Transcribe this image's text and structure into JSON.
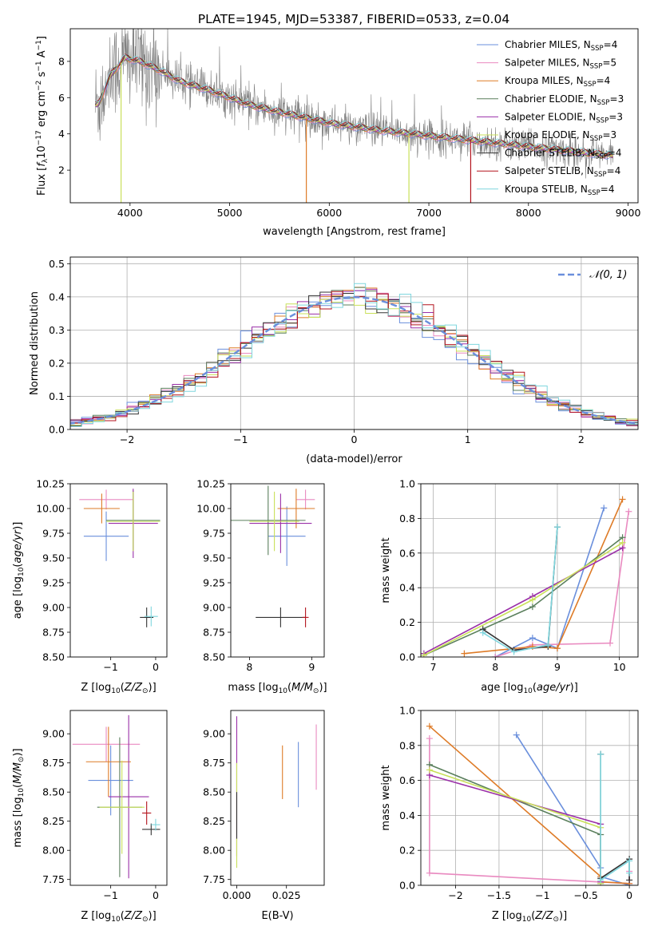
{
  "figure_title": "PLATE=1945, MJD=53387, FIBERID=0533, z=0.04",
  "colors": {
    "chabrier_miles": "#6a8fdc",
    "salpeter_miles": "#e98ac0",
    "kroupa_miles": "#de7b27",
    "chabrier_elodie": "#5a7f5c",
    "salpeter_elodie": "#9a2fa8",
    "kroupa_elodie": "#c9e05a",
    "chabrier_stelib": "#333333",
    "salpeter_stelib": "#b3121c",
    "kroupa_stelib": "#7fd6de",
    "data": "#808080",
    "normal": "#6a8fdc"
  },
  "legend_entries": [
    {
      "label": "Chabrier MILES, N",
      "sub": "SSP",
      "val": "=4",
      "color": "chabrier_miles"
    },
    {
      "label": "Salpeter MILES, N",
      "sub": "SSP",
      "val": "=5",
      "color": "salpeter_miles"
    },
    {
      "label": "Kroupa MILES, N",
      "sub": "SSP",
      "val": "=4",
      "color": "kroupa_miles"
    },
    {
      "label": "Chabrier ELODIE, N",
      "sub": "SSP",
      "val": "=3",
      "color": "chabrier_elodie"
    },
    {
      "label": "Salpeter ELODIE, N",
      "sub": "SSP",
      "val": "=3",
      "color": "salpeter_elodie"
    },
    {
      "label": "Kroupa ELODIE, N",
      "sub": "SSP",
      "val": "=3",
      "color": "kroupa_elodie"
    },
    {
      "label": "Chabrier STELIB, N",
      "sub": "SSP",
      "val": "=4",
      "color": "chabrier_stelib"
    },
    {
      "label": "Salpeter STELIB, N",
      "sub": "SSP",
      "val": "=4",
      "color": "salpeter_stelib"
    },
    {
      "label": "Kroupa STELIB, N",
      "sub": "SSP",
      "val": "=4",
      "color": "kroupa_stelib"
    }
  ],
  "chart_data": [
    {
      "id": "spectrum",
      "type": "line",
      "title": "PLATE=1945, MJD=53387, FIBERID=0533, z=0.04",
      "xlabel": "wavelength [Angstrom, rest frame]",
      "ylabel": "Flux [fλ10⁻¹⁷ erg cm⁻² s⁻¹ A⁻¹]",
      "xlim": [
        3400,
        9100
      ],
      "ylim": [
        0.2,
        9.8
      ],
      "xticks": [
        4000,
        5000,
        6000,
        7000,
        8000,
        9000
      ],
      "yticks": [
        2,
        4,
        6,
        8
      ],
      "legend": "upper right",
      "data_xrange": [
        3650,
        8850
      ],
      "model_anchors": [
        {
          "x": 3680,
          "y": 5.6
        },
        {
          "x": 3800,
          "y": 7.2
        },
        {
          "x": 3950,
          "y": 8.2
        },
        {
          "x": 4100,
          "y": 8.0
        },
        {
          "x": 4300,
          "y": 7.5
        },
        {
          "x": 4500,
          "y": 6.9
        },
        {
          "x": 4800,
          "y": 6.4
        },
        {
          "x": 5000,
          "y": 6.0
        },
        {
          "x": 5200,
          "y": 5.6
        },
        {
          "x": 5500,
          "y": 5.2
        },
        {
          "x": 6000,
          "y": 4.6
        },
        {
          "x": 6500,
          "y": 4.2
        },
        {
          "x": 7000,
          "y": 3.9
        },
        {
          "x": 7500,
          "y": 3.6
        },
        {
          "x": 8000,
          "y": 3.3
        },
        {
          "x": 8500,
          "y": 3.0
        },
        {
          "x": 8850,
          "y": 2.8
        }
      ],
      "model_dips": [
        {
          "x": 3910,
          "y": 0.2,
          "color": "kroupa_elodie"
        },
        {
          "x": 5770,
          "y": 0.2,
          "color": "kroupa_miles"
        },
        {
          "x": 6800,
          "y": 0.2,
          "color": "kroupa_elodie"
        },
        {
          "x": 7420,
          "y": 0.2,
          "color": "salpeter_stelib"
        }
      ]
    },
    {
      "id": "residuals",
      "type": "histogram",
      "xlabel": "(data-model)/error",
      "ylabel": "Normed distribution",
      "xlim": [
        -2.5,
        2.5
      ],
      "ylim": [
        0,
        0.52
      ],
      "xticks": [
        -2,
        -1,
        0,
        1,
        2
      ],
      "yticks": [
        0,
        0.1,
        0.2,
        0.3,
        0.4,
        0.5
      ],
      "legend": "upper right",
      "normal_label": "𝒩(0, 1)",
      "bin_width": 0.1,
      "grid": true
    },
    {
      "id": "age_vs_Z",
      "type": "errorbar",
      "xlabel": "Z [log₁₀(Z/Z⊙)]",
      "ylabel": "age  [log₁₀(age/yr)]",
      "xlim": [
        -1.9,
        0.25
      ],
      "ylim": [
        8.5,
        10.25
      ],
      "xticks": [
        -1,
        0
      ],
      "yticks": [
        8.5,
        8.75,
        9.0,
        9.25,
        9.5,
        9.75,
        10.0,
        10.25
      ],
      "points": [
        {
          "x": -1.1,
          "xerr": 0.5,
          "y": 9.72,
          "yerr": 0.25,
          "color": "chabrier_miles"
        },
        {
          "x": -1.1,
          "xerr": 0.6,
          "y": 10.09,
          "yerr": 0.1,
          "color": "salpeter_miles"
        },
        {
          "x": -1.2,
          "xerr": 0.4,
          "y": 10.0,
          "yerr": 0.15,
          "color": "kroupa_miles"
        },
        {
          "x": -0.5,
          "xerr": 0.6,
          "y": 9.88,
          "yerr": 0.3,
          "color": "chabrier_elodie"
        },
        {
          "x": -0.5,
          "xerr": 0.55,
          "y": 9.85,
          "yerr": 0.35,
          "color": "salpeter_elodie"
        },
        {
          "x": -0.5,
          "xerr": 0.6,
          "y": 9.87,
          "yerr": 0.3,
          "color": "kroupa_elodie"
        },
        {
          "x": -0.2,
          "xerr": 0.15,
          "y": 8.9,
          "yerr": 0.1,
          "color": "chabrier_stelib"
        },
        {
          "x": -0.1,
          "xerr": 0.15,
          "y": 8.91,
          "yerr": 0.1,
          "color": "kroupa_stelib"
        }
      ]
    },
    {
      "id": "age_vs_mass",
      "type": "errorbar",
      "xlabel": "mass [log₁₀(M/M⊙)]",
      "ylabel": "",
      "xlim": [
        7.7,
        9.2
      ],
      "ylim": [
        8.5,
        10.25
      ],
      "xticks": [
        8,
        9
      ],
      "yticks": [
        8.5,
        8.75,
        9.0,
        9.25,
        9.5,
        9.75,
        10.0,
        10.25
      ],
      "points": [
        {
          "x": 8.6,
          "xerr": 0.3,
          "y": 9.72,
          "yerr": 0.3,
          "color": "chabrier_miles"
        },
        {
          "x": 8.9,
          "xerr": 0.15,
          "y": 10.09,
          "yerr": 0.1,
          "color": "salpeter_miles"
        },
        {
          "x": 8.75,
          "xerr": 0.3,
          "y": 10.0,
          "yerr": 0.2,
          "color": "kroupa_miles"
        },
        {
          "x": 8.3,
          "xerr": 0.6,
          "y": 9.88,
          "yerr": 0.35,
          "color": "chabrier_elodie"
        },
        {
          "x": 8.5,
          "xerr": 0.5,
          "y": 9.85,
          "yerr": 0.3,
          "color": "salpeter_elodie"
        },
        {
          "x": 8.4,
          "xerr": 0.4,
          "y": 9.87,
          "yerr": 0.3,
          "color": "kroupa_elodie"
        },
        {
          "x": 8.5,
          "xerr": 0.4,
          "y": 8.9,
          "yerr": 0.1,
          "color": "chabrier_stelib"
        },
        {
          "x": 8.9,
          "xerr": 0.05,
          "y": 8.9,
          "yerr": 0.1,
          "color": "salpeter_stelib"
        }
      ]
    },
    {
      "id": "mass_weight_vs_age",
      "type": "line",
      "xlabel": "age  [log₁₀(age/yr)]",
      "ylabel": "mass weight",
      "xlim": [
        6.8,
        10.3
      ],
      "ylim": [
        0,
        1.0
      ],
      "xticks": [
        7,
        8,
        9,
        10
      ],
      "yticks": [
        0.0,
        0.2,
        0.4,
        0.6,
        0.8,
        1.0
      ],
      "grid": true,
      "series": [
        {
          "color": "chabrier_miles",
          "x": [
            8.0,
            8.6,
            9.0,
            9.75
          ],
          "y": [
            0.0,
            0.11,
            0.05,
            0.86
          ]
        },
        {
          "color": "salpeter_miles",
          "x": [
            8.0,
            8.6,
            9.85,
            10.15
          ],
          "y": [
            0.0,
            0.07,
            0.08,
            0.84
          ]
        },
        {
          "color": "kroupa_miles",
          "x": [
            7.5,
            8.6,
            9.0,
            10.05
          ],
          "y": [
            0.02,
            0.06,
            0.05,
            0.91
          ]
        },
        {
          "color": "chabrier_elodie",
          "x": [
            6.85,
            8.6,
            10.05
          ],
          "y": [
            0.01,
            0.29,
            0.69
          ]
        },
        {
          "color": "salpeter_elodie",
          "x": [
            6.85,
            8.6,
            10.05
          ],
          "y": [
            0.02,
            0.35,
            0.63
          ]
        },
        {
          "color": "kroupa_elodie",
          "x": [
            6.85,
            8.6,
            10.05
          ],
          "y": [
            0.01,
            0.33,
            0.66
          ]
        },
        {
          "color": "chabrier_stelib",
          "x": [
            7.8,
            8.3,
            8.85,
            9.0
          ],
          "y": [
            0.16,
            0.04,
            0.06,
            0.75
          ]
        },
        {
          "color": "kroupa_stelib",
          "x": [
            7.8,
            8.3,
            8.85,
            9.0
          ],
          "y": [
            0.14,
            0.03,
            0.07,
            0.75
          ]
        }
      ]
    },
    {
      "id": "mass_vs_Z",
      "type": "errorbar",
      "xlabel": "Z [log₁₀(Z/Z⊙)]",
      "ylabel": "mass [log₁₀(M/M⊙)]",
      "xlim": [
        -1.9,
        0.25
      ],
      "ylim": [
        7.7,
        9.2
      ],
      "xticks": [
        -1,
        0
      ],
      "yticks": [
        7.75,
        8.0,
        8.25,
        8.5,
        8.75,
        9.0
      ],
      "points": [
        {
          "x": -1.0,
          "xerr": 0.5,
          "y": 8.6,
          "yerr": 0.3,
          "color": "chabrier_miles"
        },
        {
          "x": -1.1,
          "xerr": 0.75,
          "y": 8.91,
          "yerr": 0.15,
          "color": "salpeter_miles"
        },
        {
          "x": -1.05,
          "xerr": 0.5,
          "y": 8.76,
          "yerr": 0.3,
          "color": "kroupa_miles"
        },
        {
          "x": -0.8,
          "xerr": 0.5,
          "y": 8.37,
          "yerr": 0.6,
          "color": "chabrier_elodie"
        },
        {
          "x": -0.6,
          "xerr": 0.45,
          "y": 8.46,
          "yerr": 0.7,
          "color": "salpeter_elodie"
        },
        {
          "x": -0.75,
          "xerr": 0.5,
          "y": 8.37,
          "yerr": 0.4,
          "color": "kroupa_elodie"
        },
        {
          "x": -0.1,
          "xerr": 0.2,
          "y": 8.18,
          "yerr": 0.05,
          "color": "chabrier_stelib"
        },
        {
          "x": -0.2,
          "xerr": 0.1,
          "y": 8.32,
          "yerr": 0.1,
          "color": "salpeter_stelib"
        },
        {
          "x": 0.0,
          "xerr": 0.1,
          "y": 8.22,
          "yerr": 0.05,
          "color": "kroupa_stelib"
        }
      ]
    },
    {
      "id": "mass_vs_ebv",
      "type": "errorbar",
      "xlabel": "E(B-V)",
      "ylabel": "",
      "xlim": [
        -0.003,
        0.044
      ],
      "ylim": [
        7.7,
        9.2
      ],
      "xticks": [
        0.0,
        0.025
      ],
      "xtick_labels": [
        "0.000",
        "0.025"
      ],
      "yticks": [
        7.75,
        8.0,
        8.25,
        8.5,
        8.75,
        9.0
      ],
      "points": [
        {
          "x": 0.031,
          "xerr": 0,
          "y": 8.65,
          "yerr": 0.28,
          "color": "chabrier_miles"
        },
        {
          "x": 0.04,
          "xerr": 0,
          "y": 8.8,
          "yerr": 0.28,
          "color": "salpeter_miles"
        },
        {
          "x": 0.023,
          "xerr": 0,
          "y": 8.67,
          "yerr": 0.23,
          "color": "kroupa_miles"
        },
        {
          "x": 0.0,
          "xerr": 0,
          "y": 8.55,
          "yerr": 0.6,
          "color": "salpeter_elodie"
        },
        {
          "x": 0.0,
          "xerr": 0,
          "y": 8.3,
          "yerr": 0.45,
          "color": "kroupa_elodie"
        },
        {
          "x": 0.0,
          "xerr": 0,
          "y": 8.3,
          "yerr": 0.2,
          "color": "chabrier_stelib"
        }
      ]
    },
    {
      "id": "mass_weight_vs_Z",
      "type": "line",
      "xlabel": "Z [log₁₀(Z/Z⊙)]",
      "ylabel": "mass weight",
      "xlim": [
        -2.4,
        0.1
      ],
      "ylim": [
        0,
        1.0
      ],
      "xticks": [
        -2.0,
        -1.5,
        -1.0,
        -0.5,
        0.0
      ],
      "yticks": [
        0.0,
        0.2,
        0.4,
        0.6,
        0.8,
        1.0
      ],
      "grid": true,
      "series": [
        {
          "color": "chabrier_miles",
          "x": [
            -1.3,
            -0.33,
            -0.33,
            0.0
          ],
          "y": [
            0.86,
            0.1,
            0.05,
            0.0
          ]
        },
        {
          "color": "salpeter_miles",
          "x": [
            -2.3,
            -2.3,
            0.0,
            0.0
          ],
          "y": [
            0.84,
            0.07,
            0.01,
            0.08
          ]
        },
        {
          "color": "kroupa_miles",
          "x": [
            -2.3,
            -0.33,
            -0.33,
            0.0
          ],
          "y": [
            0.91,
            0.05,
            0.02,
            0.01
          ]
        },
        {
          "color": "chabrier_elodie",
          "x": [
            -2.3,
            -0.33,
            -0.33
          ],
          "y": [
            0.69,
            0.29,
            0.01
          ]
        },
        {
          "color": "salpeter_elodie",
          "x": [
            -2.3,
            -0.33,
            -0.33
          ],
          "y": [
            0.63,
            0.35,
            0.02
          ]
        },
        {
          "color": "kroupa_elodie",
          "x": [
            -2.3,
            -0.33,
            -0.33
          ],
          "y": [
            0.66,
            0.33,
            0.01
          ]
        },
        {
          "color": "chabrier_stelib",
          "x": [
            -0.33,
            -0.33,
            0.0,
            0.0
          ],
          "y": [
            0.75,
            0.04,
            0.15,
            0.03
          ]
        },
        {
          "color": "kroupa_stelib",
          "x": [
            -0.33,
            -0.33,
            0.0,
            0.0
          ],
          "y": [
            0.75,
            0.03,
            0.14,
            0.07
          ]
        }
      ]
    }
  ]
}
